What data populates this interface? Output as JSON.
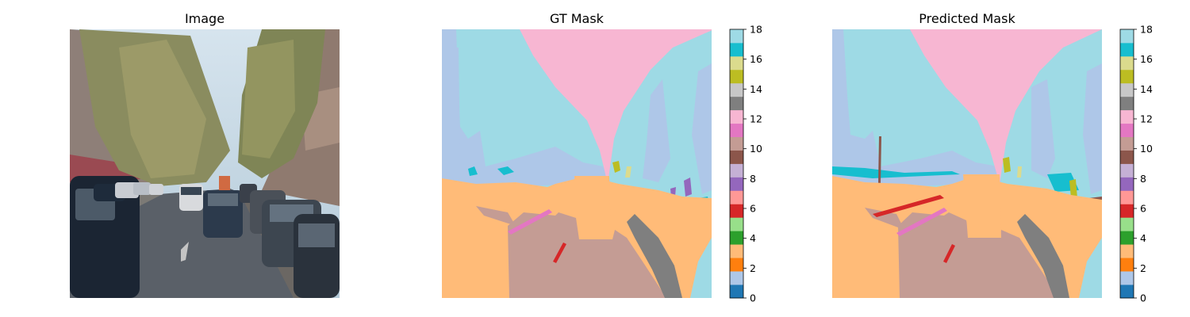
{
  "chart_data": [
    {
      "type": "image",
      "title": "Image",
      "content": "street-photo"
    },
    {
      "type": "heatmap",
      "title": "GT Mask",
      "colorbar": {
        "range": [
          0,
          18
        ],
        "ticks": [
          0,
          2,
          4,
          6,
          8,
          10,
          12,
          14,
          16,
          18
        ]
      }
    },
    {
      "type": "heatmap",
      "title": "Predicted Mask",
      "colorbar": {
        "range": [
          0,
          18
        ],
        "ticks": [
          0,
          2,
          4,
          6,
          8,
          10,
          12,
          14,
          16,
          18
        ]
      }
    }
  ],
  "colormap": [
    "#1f77b4",
    "#aec7e8",
    "#ff7f0e",
    "#ffbb78",
    "#2ca02c",
    "#98df8a",
    "#d62728",
    "#ff9896",
    "#9467bd",
    "#c5b0d5",
    "#8c564b",
    "#c49c94",
    "#e377c2",
    "#f7b6d2",
    "#7f7f7f",
    "#c7c7c7",
    "#bcbd22",
    "#dbdb8d",
    "#17becf",
    "#9edae5"
  ]
}
